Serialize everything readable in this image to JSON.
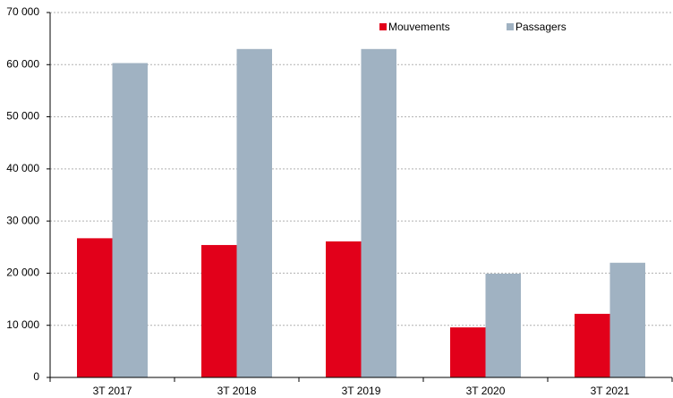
{
  "chart_data": {
    "type": "bar",
    "categories": [
      "3T 2017",
      "3T 2018",
      "3T 2019",
      "3T 2020",
      "3T 2021"
    ],
    "series": [
      {
        "name": "Mouvements",
        "color": "#e2001a",
        "values": [
          26700,
          25400,
          26100,
          9600,
          12200
        ]
      },
      {
        "name": "Passagers",
        "color": "#a0b2c2",
        "values": [
          60300,
          63000,
          63000,
          19900,
          22000
        ]
      }
    ],
    "ylim": [
      0,
      70000
    ],
    "yticks": [
      0,
      {
        "value": 10000,
        "label": "10 000"
      },
      {
        "value": 20000,
        "label": "20 000"
      },
      {
        "value": 30000,
        "label": "30 000"
      },
      {
        "value": 40000,
        "label": "40 000"
      },
      {
        "value": 50000,
        "label": "50 000"
      },
      {
        "value": 60000,
        "label": "60 000"
      },
      {
        "value": 70000,
        "label": "70 000"
      }
    ],
    "grid": true,
    "legend": "top-right"
  }
}
